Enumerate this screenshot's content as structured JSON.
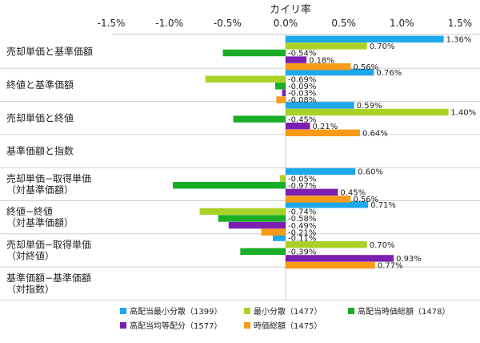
{
  "chart_data": {
    "type": "bar",
    "orientation": "horizontal",
    "title": "カイリ率",
    "xlim": [
      -1.5,
      1.5
    ],
    "ticks": [
      "-1.5%",
      "-1.0%",
      "-0.5%",
      "0.0%",
      "0.5%",
      "1.0%",
      "1.5%"
    ],
    "tick_values": [
      -1.5,
      -1.0,
      -0.5,
      0.0,
      0.5,
      1.0,
      1.5
    ],
    "grid": "horizontal-category-lines",
    "legend_position": "bottom",
    "categories": [
      [
        "売却単価と基準価額"
      ],
      [
        "終値と基準価額"
      ],
      [
        "売却単価と終値"
      ],
      [
        "基準価額と指数"
      ],
      [
        "売却単価−取得単価",
        "（対基準価額）"
      ],
      [
        "終値−終値",
        "（対基準価額）"
      ],
      [
        "売却単価−取得単価",
        "（対終値）"
      ],
      [
        "基準価額−基準価額",
        "（対指数）"
      ]
    ],
    "series": [
      {
        "name": "高配当最小分散（1399）",
        "color": "#1ea8ec",
        "values": [
          1.36,
          0.76,
          0.59,
          null,
          0.6,
          0.71,
          -0.11,
          null
        ],
        "labels": [
          "1.36%",
          "0.76%",
          "0.59%",
          "",
          "0.60%",
          "0.71%",
          "-0.11%",
          ""
        ]
      },
      {
        "name": "最小分散（1477）",
        "color": "#a9d227",
        "values": [
          0.7,
          -0.69,
          1.4,
          null,
          -0.05,
          -0.74,
          0.7,
          null
        ],
        "labels": [
          "0.70%",
          "-0.69%",
          "1.40%",
          "",
          "-0.05%",
          "-0.74%",
          "0.70%",
          ""
        ]
      },
      {
        "name": "高配当時価総額（1478）",
        "color": "#1aae27",
        "values": [
          -0.54,
          -0.09,
          -0.45,
          null,
          -0.97,
          -0.58,
          -0.39,
          null
        ],
        "labels": [
          "-0.54%",
          "-0.09%",
          "-0.45%",
          "",
          "-0.97%",
          "-0.58%",
          "-0.39%",
          ""
        ]
      },
      {
        "name": "高配当均等配分（1577）",
        "color": "#7b1fb2",
        "values": [
          0.18,
          -0.03,
          0.21,
          null,
          0.45,
          -0.49,
          0.93,
          null
        ],
        "labels": [
          "0.18%",
          "-0.03%",
          "0.21%",
          "",
          "0.45%",
          "-0.49%",
          "0.93%",
          ""
        ]
      },
      {
        "name": "時価総額（1475）",
        "color": "#f89b16",
        "values": [
          0.56,
          -0.08,
          0.64,
          null,
          0.56,
          -0.21,
          0.77,
          null
        ],
        "labels": [
          "0.56%",
          "-0.08%",
          "0.64%",
          "",
          "0.56%",
          "-0.21%",
          "0.77%",
          ""
        ]
      }
    ]
  }
}
